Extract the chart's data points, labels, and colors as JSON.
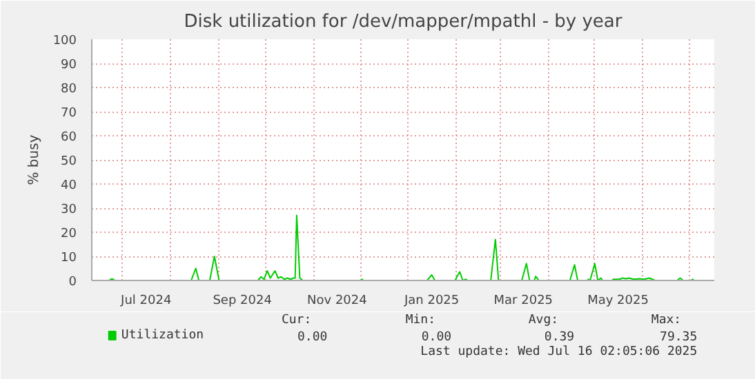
{
  "chart_data": {
    "type": "line",
    "title": "Disk utilization for /dev/mapper/mpathl - by year",
    "ylabel": "% busy",
    "x": [
      "2024-06-11",
      "2024-06-22",
      "2024-06-24",
      "2024-06-26",
      "2024-08-14",
      "2024-08-17",
      "2024-08-19",
      "2024-08-26",
      "2024-08-29",
      "2024-09-01",
      "2024-09-26",
      "2024-09-28",
      "2024-09-30",
      "2024-10-02",
      "2024-10-04",
      "2024-10-07",
      "2024-10-09",
      "2024-10-11",
      "2024-10-13",
      "2024-10-15",
      "2024-10-17",
      "2024-10-19",
      "2024-10-20",
      "2024-10-21",
      "2024-10-23",
      "2024-10-25",
      "2024-12-01",
      "2024-12-02",
      "2024-12-03",
      "2025-01-13",
      "2025-01-16",
      "2025-01-18",
      "2025-01-31",
      "2025-02-03",
      "2025-02-05",
      "2025-02-07",
      "2025-02-08",
      "2025-02-23",
      "2025-02-26",
      "2025-02-28",
      "2025-03-15",
      "2025-03-18",
      "2025-03-20",
      "2025-03-23",
      "2025-03-24",
      "2025-03-26",
      "2025-04-15",
      "2025-04-18",
      "2025-04-20",
      "2025-04-26",
      "2025-04-27",
      "2025-04-28",
      "2025-05-01",
      "2025-05-03",
      "2025-05-05",
      "2025-05-06",
      "2025-05-12",
      "2025-05-13",
      "2025-05-17",
      "2025-05-19",
      "2025-05-21",
      "2025-05-23",
      "2025-05-26",
      "2025-05-30",
      "2025-06-02",
      "2025-06-05",
      "2025-06-07",
      "2025-06-09",
      "2025-06-23",
      "2025-06-25",
      "2025-06-27",
      "2025-07-02",
      "2025-07-03",
      "2025-07-04",
      "2025-07-16"
    ],
    "series": [
      {
        "name": "Utilization",
        "color": "#00cc00",
        "values": [
          0,
          0,
          0.7,
          0,
          0,
          5,
          0,
          0,
          10,
          0,
          0,
          1.5,
          0.5,
          4,
          1,
          4,
          1,
          1.5,
          0.5,
          1,
          0.5,
          1,
          1,
          27,
          1,
          0,
          0,
          0.5,
          0,
          0,
          2.3,
          0,
          0,
          3.6,
          0,
          0.5,
          0,
          0,
          17,
          0,
          0,
          7,
          0,
          0,
          1.7,
          0,
          0,
          6.5,
          0,
          0,
          0.5,
          0,
          7,
          0,
          1,
          0,
          0,
          0.5,
          0.5,
          1,
          0.7,
          1,
          0.5,
          0.7,
          0.5,
          1,
          0.5,
          0,
          0,
          1,
          0,
          0,
          0.5,
          0,
          0
        ]
      }
    ],
    "xlim": [
      "2024-06-11",
      "2025-07-17"
    ],
    "xticks": [
      {
        "value": "2024-07-01",
        "label": null
      },
      {
        "value": "2024-07-16",
        "label": "Jul 2024"
      },
      {
        "value": "2024-08-01",
        "label": null
      },
      {
        "value": "2024-09-01",
        "label": null
      },
      {
        "value": "2024-09-16",
        "label": "Sep 2024"
      },
      {
        "value": "2024-10-01",
        "label": null
      },
      {
        "value": "2024-11-01",
        "label": null
      },
      {
        "value": "2024-11-16",
        "label": "Nov 2024"
      },
      {
        "value": "2024-12-01",
        "label": null
      },
      {
        "value": "2025-01-01",
        "label": null
      },
      {
        "value": "2025-01-16",
        "label": "Jan 2025"
      },
      {
        "value": "2025-02-01",
        "label": null
      },
      {
        "value": "2025-03-01",
        "label": null
      },
      {
        "value": "2025-03-16",
        "label": "Mar 2025"
      },
      {
        "value": "2025-04-01",
        "label": null
      },
      {
        "value": "2025-05-01",
        "label": null
      },
      {
        "value": "2025-05-16",
        "label": "May 2025"
      },
      {
        "value": "2025-06-01",
        "label": null
      },
      {
        "value": "2025-07-01",
        "label": null
      }
    ],
    "ylim": [
      0,
      100
    ],
    "yticks": [
      0,
      10,
      20,
      30,
      40,
      50,
      60,
      70,
      80,
      90,
      100
    ],
    "grid": true,
    "legend": "bottom",
    "annotations": [
      "Cur:",
      "Min:",
      "Avg:",
      "Max:",
      "0.00",
      "0.00",
      "0.39",
      "79.35",
      "Last update: Wed Jul 16 02:05:06 2025"
    ]
  }
}
